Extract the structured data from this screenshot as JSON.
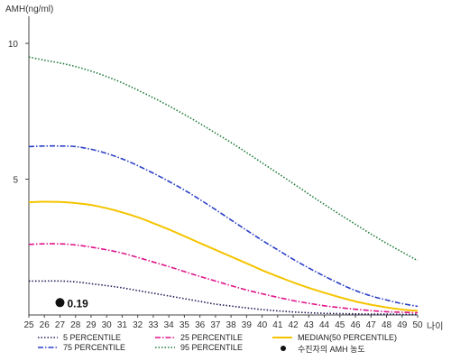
{
  "chart_data": {
    "type": "line",
    "ylabel": "AMH(ng/ml)",
    "xlabel": "나이",
    "xlim": [
      25,
      50
    ],
    "ylim": [
      0,
      11
    ],
    "x_ticks": [
      25,
      26,
      27,
      28,
      29,
      30,
      31,
      32,
      33,
      34,
      35,
      36,
      37,
      38,
      39,
      40,
      41,
      42,
      43,
      44,
      45,
      46,
      47,
      48,
      49,
      50
    ],
    "y_ticks": [
      5,
      10
    ],
    "x": [
      25,
      26,
      27,
      28,
      29,
      30,
      31,
      32,
      33,
      34,
      35,
      36,
      37,
      38,
      39,
      40,
      41,
      42,
      43,
      44,
      45,
      46,
      47,
      48,
      49,
      50
    ],
    "series": [
      {
        "name": "5 PERCENTILE",
        "color": "#1f1f5a",
        "dash": "dotted",
        "values": [
          1.25,
          1.25,
          1.25,
          1.22,
          1.15,
          1.08,
          1.0,
          0.9,
          0.8,
          0.7,
          0.6,
          0.5,
          0.4,
          0.33,
          0.26,
          0.2,
          0.15,
          0.11,
          0.08,
          0.06,
          0.05,
          0.04,
          0.03,
          0.03,
          0.02,
          0.02
        ]
      },
      {
        "name": "25 PERCENTILE",
        "color": "#e0148a",
        "dash": "dashdot",
        "values": [
          2.6,
          2.62,
          2.62,
          2.58,
          2.5,
          2.4,
          2.28,
          2.12,
          1.95,
          1.78,
          1.6,
          1.42,
          1.25,
          1.08,
          0.92,
          0.78,
          0.65,
          0.53,
          0.43,
          0.34,
          0.27,
          0.21,
          0.16,
          0.12,
          0.1,
          0.08
        ]
      },
      {
        "name": "MEDIAN(50 PERCENTILE)",
        "color": "#f5c400",
        "dash": "solid",
        "values": [
          4.15,
          4.17,
          4.16,
          4.12,
          4.05,
          3.93,
          3.78,
          3.6,
          3.38,
          3.15,
          2.9,
          2.65,
          2.4,
          2.15,
          1.9,
          1.65,
          1.42,
          1.2,
          1.0,
          0.82,
          0.65,
          0.5,
          0.38,
          0.28,
          0.2,
          0.15
        ]
      },
      {
        "name": "75 PERCENTILE",
        "color": "#2a3fc8",
        "dash": "dashdot",
        "values": [
          6.2,
          6.22,
          6.22,
          6.2,
          6.1,
          5.95,
          5.75,
          5.5,
          5.22,
          4.92,
          4.6,
          4.25,
          3.88,
          3.5,
          3.12,
          2.75,
          2.4,
          2.05,
          1.73,
          1.43,
          1.15,
          0.9,
          0.7,
          0.55,
          0.42,
          0.32
        ]
      },
      {
        "name": "95 PERCENTILE",
        "color": "#1f7a3a",
        "dash": "dotted",
        "values": [
          9.5,
          9.38,
          9.28,
          9.15,
          8.98,
          8.78,
          8.55,
          8.28,
          8.0,
          7.7,
          7.38,
          7.05,
          6.7,
          6.35,
          5.98,
          5.6,
          5.22,
          4.84,
          4.45,
          4.07,
          3.7,
          3.34,
          2.98,
          2.64,
          2.32,
          2.0
        ]
      }
    ],
    "marker": {
      "name": "수진자의 AMH 농도",
      "x": 27,
      "y": 0.19,
      "label": "0.19",
      "color": "#111111"
    },
    "grid": false,
    "legend_position": "bottom"
  }
}
